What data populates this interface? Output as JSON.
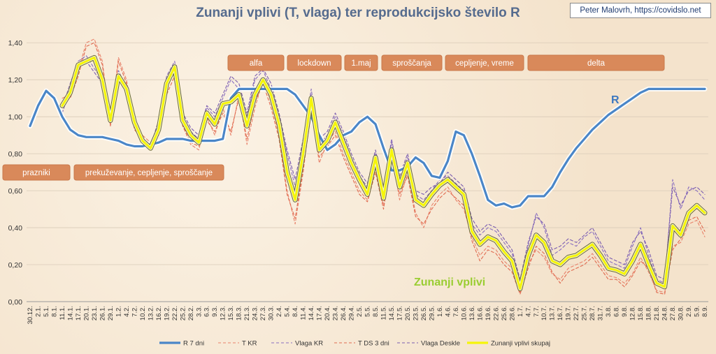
{
  "title": "Zunanji vplivi (T, vlaga) ter reprodukcijsko število R",
  "credit": "Peter Malovrh, https://covidslo.net",
  "chart_data": {
    "type": "line",
    "ylim": [
      0,
      1.45
    ],
    "yticks": [
      "0,00",
      "0,20",
      "0,40",
      "0,60",
      "0,80",
      "1,00",
      "1,20",
      "1,40"
    ],
    "ytick_values": [
      0,
      0.2,
      0.4,
      0.6,
      0.8,
      1.0,
      1.2,
      1.4
    ],
    "xticks": [
      "30.12.",
      "2.1.",
      "5.1.",
      "8.1.",
      "11.1.",
      "14.1.",
      "17.1.",
      "20.1.",
      "23.1.",
      "26.1.",
      "29.1.",
      "1.2.",
      "4.2.",
      "7.2.",
      "10.2.",
      "13.2.",
      "16.2.",
      "19.2.",
      "22.2.",
      "25.2.",
      "28.2.",
      "3.3.",
      "6.3.",
      "9.3.",
      "12.3.",
      "15.3.",
      "18.3.",
      "21.3.",
      "24.3.",
      "27.3.",
      "30.3.",
      "2.4.",
      "5.4.",
      "8.4.",
      "11.4.",
      "14.4.",
      "17.4.",
      "20.4.",
      "23.4.",
      "26.4.",
      "29.4.",
      "2.5.",
      "5.5.",
      "8.5.",
      "11.5.",
      "14.5.",
      "17.5.",
      "20.5.",
      "23.5.",
      "26.5.",
      "29.5.",
      "1.6.",
      "4.6.",
      "7.6.",
      "10.6.",
      "13.6.",
      "16.6.",
      "19.6.",
      "22.6.",
      "25.6.",
      "28.6.",
      "1.7.",
      "4.7.",
      "7.7.",
      "10.7.",
      "13.7.",
      "16.7.",
      "19.7.",
      "22.7.",
      "25.7.",
      "28.7.",
      "31.7.",
      "3.8.",
      "6.8.",
      "9.8.",
      "12.8.",
      "15.8.",
      "18.8.",
      "21.8.",
      "24.8.",
      "27.8.",
      "30.8.",
      "2.9.",
      "5.9.",
      "8.9."
    ],
    "series": [
      {
        "name": "R 7 dni",
        "color": "#4a86c8",
        "values": [
          0.95,
          1.06,
          1.14,
          1.1,
          1.0,
          0.93,
          0.9,
          0.89,
          0.89,
          0.89,
          0.88,
          0.87,
          0.85,
          0.84,
          0.84,
          0.85,
          0.86,
          0.88,
          0.88,
          0.88,
          0.87,
          0.87,
          0.87,
          0.87,
          0.88,
          1.1,
          1.15,
          1.15,
          1.15,
          1.15,
          1.15,
          1.15,
          1.15,
          1.12,
          1.06,
          1.0,
          0.9,
          0.82,
          0.85,
          0.9,
          0.92,
          0.97,
          1.0,
          0.96,
          0.83,
          0.71,
          0.71,
          0.73,
          0.78,
          0.75,
          0.68,
          0.67,
          0.76,
          0.92,
          0.9,
          0.8,
          0.68,
          0.55,
          0.52,
          0.53,
          0.51,
          0.52,
          0.57,
          0.57,
          0.57,
          0.62,
          0.7,
          0.77,
          0.83,
          0.88,
          0.93,
          0.97,
          1.01,
          1.04,
          1.07,
          1.1,
          1.13,
          1.15,
          1.15,
          1.15,
          1.15,
          1.15,
          1.15,
          1.15,
          1.15
        ]
      },
      {
        "name": "T KR",
        "color": "#e8826b",
        "values": [
          null,
          null,
          null,
          null,
          1.1,
          1.12,
          1.25,
          1.4,
          1.42,
          1.3,
          0.95,
          1.32,
          1.2,
          0.95,
          0.9,
          0.86,
          0.92,
          1.15,
          1.25,
          0.95,
          0.85,
          0.82,
          1.0,
          0.9,
          1.05,
          0.9,
          1.12,
          0.85,
          1.05,
          1.2,
          1.08,
          0.9,
          0.6,
          0.42,
          0.7,
          1.05,
          0.75,
          0.86,
          0.92,
          0.8,
          0.7,
          0.6,
          0.55,
          0.72,
          0.52,
          0.8,
          0.55,
          0.7,
          0.48,
          0.4,
          0.52,
          0.58,
          0.62,
          0.55,
          0.5,
          0.35,
          0.25,
          0.3,
          0.28,
          0.22,
          0.18,
          0.05,
          0.2,
          0.28,
          0.24,
          0.15,
          0.12,
          0.18,
          0.2,
          0.22,
          0.26,
          0.2,
          0.14,
          0.13,
          0.1,
          0.15,
          0.24,
          0.16,
          0.06,
          0.05,
          0.3,
          0.32,
          0.42,
          0.44,
          0.35
        ]
      },
      {
        "name": "Vlaga KR",
        "color": "#8a6fc0",
        "values": [
          null,
          null,
          null,
          null,
          1.05,
          1.18,
          1.3,
          1.33,
          1.26,
          1.2,
          1.0,
          1.25,
          1.15,
          0.98,
          0.86,
          0.82,
          0.95,
          1.22,
          1.3,
          1.0,
          0.92,
          0.88,
          1.05,
          1.0,
          1.1,
          1.2,
          1.15,
          1.0,
          1.2,
          1.25,
          1.15,
          1.0,
          0.8,
          0.62,
          0.85,
          1.15,
          0.85,
          0.9,
          1.0,
          0.9,
          0.78,
          0.68,
          0.62,
          0.8,
          0.6,
          0.88,
          0.66,
          0.78,
          0.58,
          0.55,
          0.6,
          0.66,
          0.68,
          0.64,
          0.6,
          0.42,
          0.36,
          0.4,
          0.38,
          0.32,
          0.26,
          0.1,
          0.3,
          0.48,
          0.4,
          0.25,
          0.28,
          0.32,
          0.3,
          0.35,
          0.38,
          0.3,
          0.22,
          0.2,
          0.18,
          0.3,
          0.4,
          0.25,
          0.12,
          0.1,
          0.66,
          0.5,
          0.62,
          0.6,
          0.55
        ]
      },
      {
        "name": "T DS 3 dni",
        "color": "#e06a4f",
        "values": [
          null,
          null,
          null,
          null,
          1.08,
          1.1,
          1.22,
          1.38,
          1.4,
          1.28,
          0.95,
          1.3,
          1.18,
          0.93,
          0.88,
          0.84,
          0.9,
          1.12,
          1.22,
          0.95,
          0.86,
          0.84,
          0.98,
          0.92,
          1.02,
          0.92,
          1.1,
          0.88,
          1.08,
          1.18,
          1.05,
          0.88,
          0.58,
          0.45,
          0.72,
          1.02,
          0.78,
          0.84,
          0.9,
          0.78,
          0.68,
          0.58,
          0.54,
          0.7,
          0.5,
          0.78,
          0.58,
          0.68,
          0.46,
          0.42,
          0.5,
          0.56,
          0.6,
          0.56,
          0.52,
          0.33,
          0.22,
          0.28,
          0.26,
          0.2,
          0.16,
          0.04,
          0.18,
          0.3,
          0.26,
          0.16,
          0.1,
          0.16,
          0.18,
          0.2,
          0.24,
          0.18,
          0.12,
          0.12,
          0.08,
          0.14,
          0.22,
          0.18,
          0.05,
          0.04,
          0.28,
          0.34,
          0.44,
          0.46,
          0.38
        ]
      },
      {
        "name": "Vlaga Deskle",
        "color": "#7a5cb0",
        "values": [
          null,
          null,
          null,
          null,
          1.02,
          1.15,
          1.28,
          1.3,
          1.24,
          1.18,
          1.02,
          1.22,
          1.12,
          1.0,
          0.88,
          0.84,
          0.98,
          1.2,
          1.28,
          1.02,
          0.94,
          0.9,
          1.06,
          1.02,
          1.12,
          1.22,
          1.18,
          1.02,
          1.22,
          1.26,
          1.18,
          1.02,
          0.82,
          0.66,
          0.88,
          1.12,
          0.88,
          0.92,
          1.02,
          0.92,
          0.8,
          0.7,
          0.64,
          0.82,
          0.62,
          0.86,
          0.68,
          0.8,
          0.6,
          0.58,
          0.62,
          0.64,
          0.7,
          0.66,
          0.62,
          0.45,
          0.38,
          0.42,
          0.4,
          0.34,
          0.28,
          0.12,
          0.32,
          0.46,
          0.42,
          0.28,
          0.3,
          0.34,
          0.32,
          0.36,
          0.4,
          0.32,
          0.24,
          0.22,
          0.2,
          0.32,
          0.38,
          0.28,
          0.14,
          0.12,
          0.62,
          0.52,
          0.6,
          0.62,
          0.58
        ]
      },
      {
        "name": "Zunanji vplivi skupaj",
        "color": "#f5f50a",
        "values": [
          null,
          null,
          null,
          null,
          1.06,
          1.13,
          1.28,
          1.3,
          1.32,
          1.2,
          0.98,
          1.22,
          1.15,
          0.97,
          0.87,
          0.83,
          0.93,
          1.18,
          1.27,
          0.98,
          0.9,
          0.86,
          1.02,
          0.96,
          1.07,
          1.08,
          1.12,
          0.95,
          1.12,
          1.2,
          1.12,
          0.96,
          0.7,
          0.55,
          0.8,
          1.1,
          0.82,
          0.87,
          0.97,
          0.86,
          0.75,
          0.66,
          0.58,
          0.78,
          0.56,
          0.82,
          0.62,
          0.75,
          0.55,
          0.52,
          0.58,
          0.63,
          0.66,
          0.62,
          0.58,
          0.38,
          0.31,
          0.35,
          0.33,
          0.27,
          0.22,
          0.07,
          0.25,
          0.36,
          0.32,
          0.22,
          0.2,
          0.24,
          0.25,
          0.28,
          0.31,
          0.25,
          0.18,
          0.17,
          0.15,
          0.22,
          0.31,
          0.2,
          0.1,
          0.08,
          0.41,
          0.36,
          0.48,
          0.52,
          0.48
        ]
      }
    ],
    "annotations": {
      "r_label": "R",
      "zunanji_label": "Zunanji vplivi"
    },
    "periods": [
      {
        "label": "alfa",
        "row": 1
      },
      {
        "label": "lockdown",
        "row": 1
      },
      {
        "label": "1.maj",
        "row": 1
      },
      {
        "label": "sproščanja",
        "row": 1
      },
      {
        "label": "cepljenje, vreme",
        "row": 1
      },
      {
        "label": "delta",
        "row": 1
      },
      {
        "label": "prazniki",
        "row": 2
      },
      {
        "label": "prekuževanje, cepljenje, sproščanje",
        "row": 2
      }
    ],
    "legend_position": "bottom",
    "grid": true
  }
}
